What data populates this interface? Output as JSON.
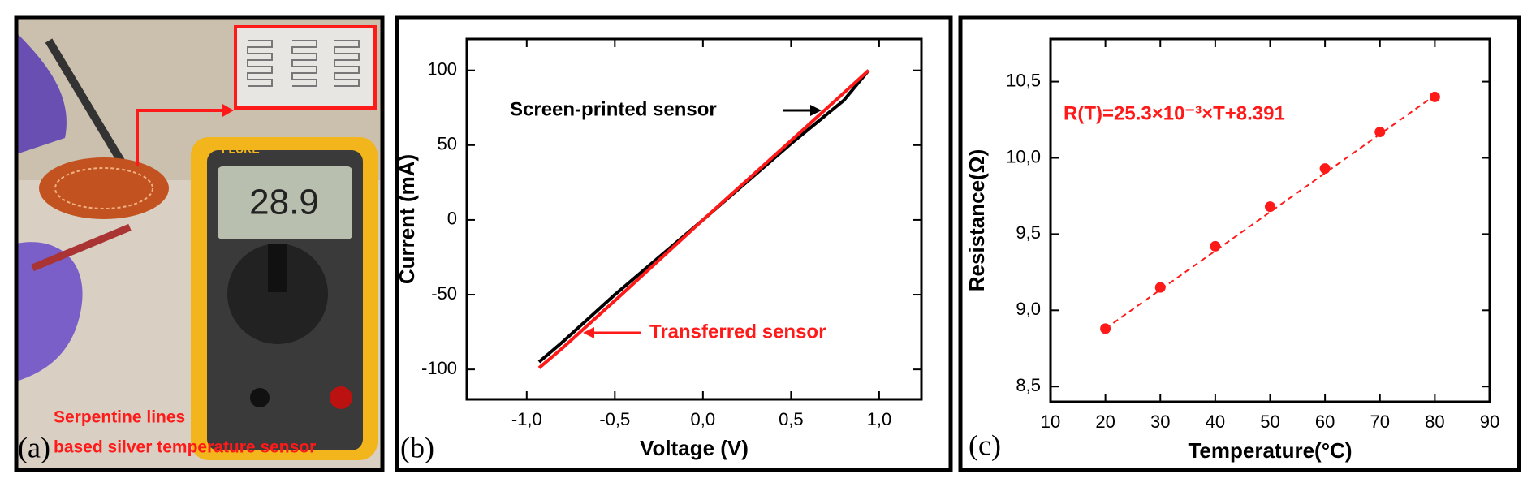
{
  "photo": {
    "label": "(a)",
    "caption": [
      "Serpentine lines",
      "based silver temperature sensor"
    ],
    "meter_brand": "FLUKE",
    "meter_reading": "28.9"
  },
  "chart_data": [
    {
      "type": "line",
      "label": "(b)",
      "x_label": "Voltage (V)",
      "y_label": "Current (mA)",
      "x": [
        -0.93,
        -0.8,
        -0.5,
        0,
        0.5,
        0.8,
        0.94
      ],
      "series": [
        {
          "name": "Screen-printed sensor",
          "color": "#000000",
          "values": [
            -95,
            -82,
            -50,
            0,
            51,
            80,
            100
          ]
        },
        {
          "name": "Transferred sensor",
          "color": "#ff1a1a",
          "values": [
            -99,
            -86,
            -54,
            0,
            53,
            85,
            100
          ]
        }
      ],
      "xlim": [
        -1.34,
        1.24
      ],
      "ylim": [
        -120,
        121
      ],
      "xticks": [
        {
          "value": -1,
          "label": "-1,0"
        },
        {
          "value": -0.5,
          "label": "-0,5"
        },
        {
          "value": 0,
          "label": "0,0"
        },
        {
          "value": 0.5,
          "label": "0,5"
        },
        {
          "value": 1,
          "label": "1,0"
        }
      ],
      "yticks": [
        -100,
        -50,
        0,
        50,
        100
      ]
    },
    {
      "type": "scatter",
      "label": "(c)",
      "x_label": "Temperature(°C)",
      "y_label": "Resistance(Ω)",
      "annotation": "R(T)=25.3×10⁻³×T+8.391",
      "color": "#ff1a1a",
      "x": [
        20,
        30,
        40,
        50,
        60,
        70,
        80
      ],
      "values": [
        8.88,
        9.15,
        9.42,
        9.68,
        9.93,
        10.17,
        10.4
      ],
      "fit_line": {
        "x": [
          20,
          80
        ],
        "values": [
          8.88,
          10.41
        ]
      },
      "xlim": [
        10,
        90
      ],
      "ylim": [
        8.4,
        10.78
      ],
      "xticks": [
        10,
        20,
        30,
        40,
        50,
        60,
        70,
        80,
        90
      ],
      "yticks": [
        {
          "value": 8.5,
          "label": "8,5"
        },
        {
          "value": 9,
          "label": "9,0"
        },
        {
          "value": 9.5,
          "label": "9,5"
        },
        {
          "value": 10,
          "label": "10,0"
        },
        {
          "value": 10.5,
          "label": "10,5"
        }
      ]
    }
  ]
}
